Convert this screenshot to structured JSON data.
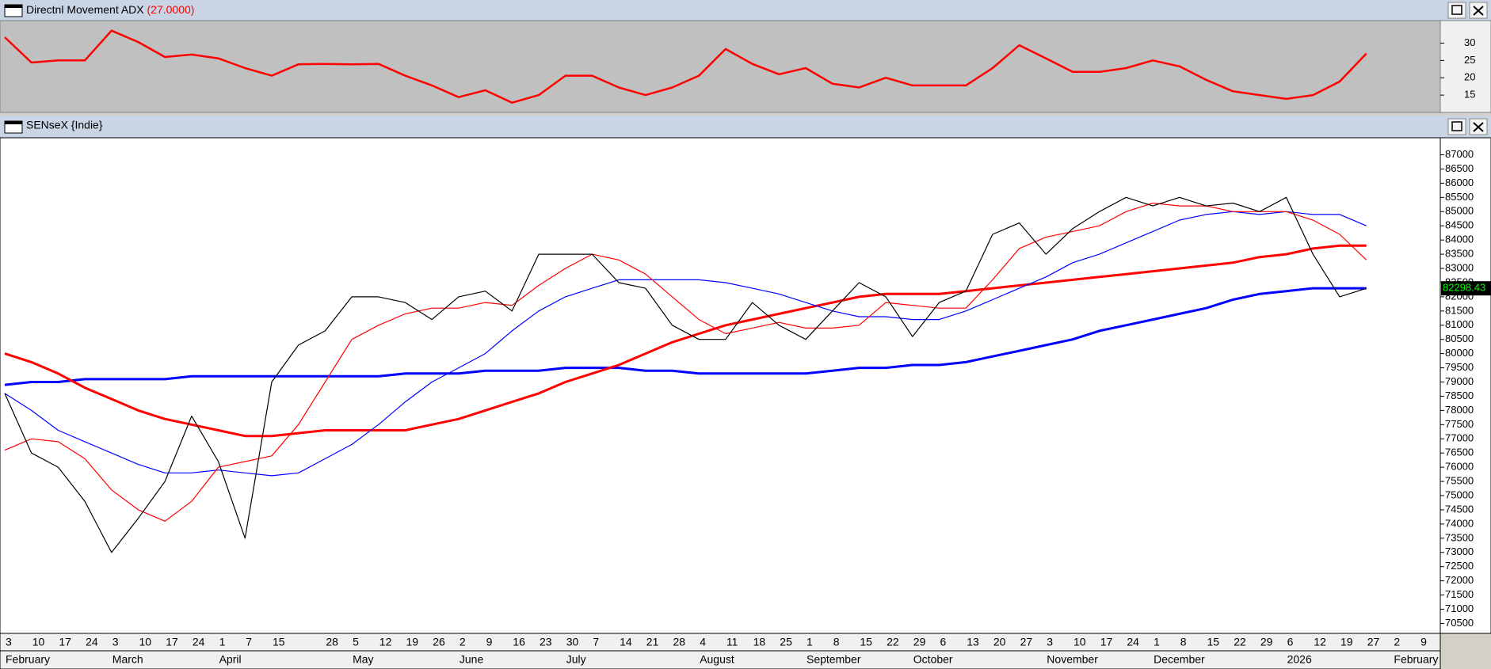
{
  "chart_data": [
    {
      "type": "line",
      "title": "Directnl Movement ADX",
      "last_value_label": "(27.0000)",
      "ylim": [
        10,
        36.5
      ],
      "yticks": [
        15,
        20,
        25,
        30
      ],
      "series": [
        {
          "color": "#ff0000",
          "style": "thick",
          "values": [
            31.7,
            24.4,
            25,
            25,
            33.6,
            30.3,
            26,
            26.7,
            25.6,
            22.8,
            20.6,
            23.9,
            24,
            23.9,
            24,
            20.6,
            17.8,
            14.4,
            16.4,
            12.8,
            15,
            20.6,
            20.6,
            17.2,
            15,
            17.2,
            20.6,
            28.3,
            24,
            21,
            22.8,
            18.3,
            17.2,
            20,
            17.8,
            17.8,
            17.8,
            22.8,
            29.4,
            25.6,
            21.7,
            21.7,
            22.8,
            25,
            23.3,
            19.4,
            16.1,
            15,
            13.9,
            15,
            18.9,
            27,
            null,
            null
          ]
        }
      ]
    },
    {
      "type": "line",
      "title": "SENseX {Indie}",
      "last_value_label": "82298.43",
      "ylim": [
        70150,
        87600
      ],
      "yticks": [
        70500,
        71000,
        71500,
        72000,
        72500,
        73000,
        73500,
        74000,
        74500,
        75000,
        75500,
        76000,
        76500,
        77000,
        77500,
        78000,
        78500,
        79000,
        79500,
        80000,
        80500,
        81000,
        81500,
        82000,
        82500,
        83000,
        83500,
        84000,
        84500,
        85000,
        85500,
        86000,
        86500,
        87000
      ],
      "categories": [
        "3",
        "10",
        "17",
        "24",
        "3",
        "10",
        "17",
        "24",
        "1",
        "7",
        "15",
        null,
        "28",
        "5",
        "12",
        "19",
        "26",
        "2",
        "9",
        "16",
        "23",
        "30",
        "7",
        "14",
        "21",
        "28",
        "4",
        "11",
        "18",
        "25",
        "1",
        "8",
        "15",
        "22",
        "29",
        "6",
        "13",
        "20",
        "27",
        "3",
        "10",
        "17",
        "24",
        "1",
        "8",
        "15",
        "22",
        "29",
        "6",
        "12",
        "19",
        "27",
        "2",
        "9"
      ],
      "month_labels": [
        "February",
        null,
        null,
        null,
        "March",
        null,
        null,
        null,
        "April",
        null,
        null,
        null,
        null,
        "May",
        null,
        null,
        null,
        "June",
        null,
        null,
        null,
        "July",
        null,
        null,
        null,
        null,
        "August",
        null,
        null,
        null,
        "September",
        null,
        null,
        null,
        "October",
        null,
        null,
        null,
        null,
        "November",
        null,
        null,
        null,
        "December",
        null,
        null,
        null,
        null,
        "2026",
        null,
        null,
        null,
        "February",
        null
      ],
      "series": [
        {
          "color": "#0000ff",
          "style": "thick",
          "values": [
            78900,
            79000,
            79000,
            79100,
            79100,
            79100,
            79100,
            79200,
            79200,
            79200,
            79200,
            79200,
            79200,
            79200,
            79200,
            79300,
            79300,
            79300,
            79400,
            79400,
            79400,
            79500,
            79500,
            79500,
            79400,
            79400,
            79300,
            79300,
            79300,
            79300,
            79300,
            79400,
            79500,
            79500,
            79600,
            79600,
            79700,
            79900,
            80100,
            80300,
            80500,
            80800,
            81000,
            81200,
            81400,
            81600,
            81900,
            82100,
            82200,
            82300,
            82300,
            82300,
            null,
            null
          ]
        },
        {
          "color": "#ff0000",
          "style": "thick",
          "values": [
            80000,
            79700,
            79300,
            78800,
            78400,
            78000,
            77700,
            77500,
            77300,
            77100,
            77100,
            77200,
            77300,
            77300,
            77300,
            77300,
            77500,
            77700,
            78000,
            78300,
            78600,
            79000,
            79300,
            79600,
            80000,
            80400,
            80700,
            81000,
            81200,
            81400,
            81600,
            81800,
            82000,
            82100,
            82100,
            82100,
            82200,
            82300,
            82400,
            82500,
            82600,
            82700,
            82800,
            82900,
            83000,
            83100,
            83200,
            83400,
            83500,
            83700,
            83800,
            83800,
            null,
            null
          ]
        },
        {
          "color": "#0000ff",
          "style": "thin",
          "values": [
            78600,
            78000,
            77300,
            76900,
            76500,
            76100,
            75800,
            75800,
            75900,
            75800,
            75700,
            75800,
            76300,
            76800,
            77500,
            78300,
            79000,
            79500,
            80000,
            80800,
            81500,
            82000,
            82300,
            82600,
            82600,
            82600,
            82600,
            82500,
            82300,
            82100,
            81800,
            81500,
            81300,
            81300,
            81200,
            81200,
            81500,
            81900,
            82300,
            82700,
            83200,
            83500,
            83900,
            84300,
            84700,
            84900,
            85000,
            84900,
            85000,
            84900,
            84900,
            84500,
            null,
            null
          ]
        },
        {
          "color": "#ff0000",
          "style": "thin",
          "values": [
            76600,
            77000,
            76900,
            76300,
            75200,
            74500,
            74100,
            74800,
            76000,
            76200,
            76400,
            77500,
            79000,
            80500,
            81000,
            81400,
            81600,
            81600,
            81800,
            81700,
            82400,
            83000,
            83500,
            83300,
            82800,
            82000,
            81200,
            80700,
            80900,
            81100,
            80900,
            80900,
            81000,
            81800,
            81700,
            81600,
            81600,
            82600,
            83700,
            84100,
            84300,
            84500,
            85000,
            85300,
            85200,
            85200,
            85000,
            85000,
            85000,
            84700,
            84200,
            83300,
            null,
            null
          ]
        },
        {
          "color": "#000000",
          "style": "thin",
          "values": [
            78600,
            76500,
            76000,
            74800,
            73000,
            74200,
            75500,
            77800,
            76200,
            73500,
            79000,
            80300,
            80800,
            82000,
            82000,
            81800,
            81200,
            82000,
            82200,
            81500,
            83500,
            83500,
            83500,
            82500,
            82300,
            81000,
            80500,
            80500,
            81800,
            81000,
            80500,
            81500,
            82500,
            82000,
            80600,
            81800,
            82200,
            84200,
            84600,
            83500,
            84400,
            85000,
            85500,
            85200,
            85500,
            85200,
            85300,
            85000,
            85500,
            83500,
            82000,
            82298.43,
            null,
            null
          ]
        }
      ]
    }
  ]
}
